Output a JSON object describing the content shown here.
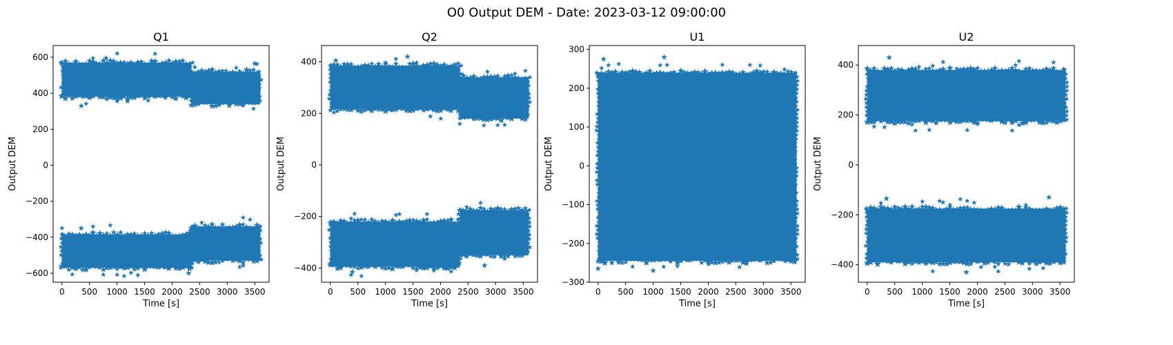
{
  "figure": {
    "title": "O0 Output DEM - Date: 2023-03-12 09:00:00",
    "point_color": "#1f77b4",
    "marker": "star"
  },
  "chart_data": [
    {
      "type": "scatter",
      "title": "Q1",
      "xlabel": "Time [s]",
      "ylabel": "Output DEM",
      "xlim": [
        -160,
        3760
      ],
      "ylim": [
        -650,
        665
      ],
      "xticks": [
        0,
        500,
        1000,
        1500,
        2000,
        2500,
        3000,
        3500
      ],
      "yticks": [
        -600,
        -400,
        -200,
        0,
        200,
        400,
        600
      ],
      "grid": false,
      "bands": [
        {
          "segments": [
            {
              "x0": 0,
              "x1": 2350,
              "low": 380,
              "high": 570
            },
            {
              "x0": 2350,
              "x1": 3600,
              "low": 340,
              "high": 520
            }
          ]
        },
        {
          "segments": [
            {
              "x0": 0,
              "x1": 2350,
              "low": -570,
              "high": -385
            },
            {
              "x0": 2350,
              "x1": 3600,
              "low": -530,
              "high": -340
            }
          ]
        }
      ],
      "outliers": [
        [
          350,
          330
        ],
        [
          800,
          595
        ],
        [
          3500,
          565
        ],
        [
          350,
          -350
        ],
        [
          2300,
          -600
        ]
      ]
    },
    {
      "type": "scatter",
      "title": "Q2",
      "xlabel": "Time [s]",
      "ylabel": "Output DEM",
      "xlim": [
        -160,
        3760
      ],
      "ylim": [
        -455,
        463
      ],
      "xticks": [
        0,
        500,
        1000,
        1500,
        2000,
        2500,
        3000,
        3500
      ],
      "yticks": [
        -400,
        -200,
        0,
        200,
        400
      ],
      "grid": false,
      "bands": [
        {
          "segments": [
            {
              "x0": 0,
              "x1": 2350,
              "low": 215,
              "high": 385
            },
            {
              "x0": 2350,
              "x1": 3600,
              "low": 180,
              "high": 340
            }
          ]
        },
        {
          "segments": [
            {
              "x0": 0,
              "x1": 2350,
              "low": -395,
              "high": -220
            },
            {
              "x0": 2350,
              "x1": 3600,
              "low": -350,
              "high": -175
            }
          ]
        }
      ],
      "outliers": [
        [
          1400,
          420
        ],
        [
          100,
          405
        ],
        [
          2800,
          -390
        ],
        [
          400,
          -415
        ]
      ]
    },
    {
      "type": "scatter",
      "title": "U1",
      "xlabel": "Time [s]",
      "ylabel": "Output DEM",
      "xlim": [
        -160,
        3760
      ],
      "ylim": [
        -300,
        310
      ],
      "xticks": [
        0,
        500,
        1000,
        1500,
        2000,
        2500,
        3000,
        3500
      ],
      "yticks": [
        -300,
        -200,
        -100,
        0,
        100,
        200,
        300
      ],
      "grid": false,
      "bands": [
        {
          "segments": [
            {
              "x0": 0,
              "x1": 3600,
              "low": -245,
              "high": 240
            }
          ]
        }
      ],
      "outliers": [
        [
          100,
          275
        ],
        [
          1200,
          280
        ],
        [
          0,
          -265
        ],
        [
          1000,
          -270
        ],
        [
          3400,
          -245
        ]
      ]
    },
    {
      "type": "scatter",
      "title": "U2",
      "xlabel": "Time [s]",
      "ylabel": "Output DEM",
      "xlim": [
        -160,
        3760
      ],
      "ylim": [
        -470,
        478
      ],
      "xticks": [
        0,
        500,
        1000,
        1500,
        2000,
        2500,
        3000,
        3500
      ],
      "yticks": [
        -400,
        -200,
        0,
        200,
        400
      ],
      "grid": false,
      "bands": [
        {
          "segments": [
            {
              "x0": 0,
              "x1": 3600,
              "low": 175,
              "high": 380
            }
          ]
        },
        {
          "segments": [
            {
              "x0": 0,
              "x1": 3600,
              "low": -390,
              "high": -175
            }
          ]
        }
      ],
      "outliers": [
        [
          350,
          -135
        ],
        [
          1800,
          -430
        ],
        [
          400,
          430
        ],
        [
          3300,
          -130
        ]
      ]
    }
  ]
}
